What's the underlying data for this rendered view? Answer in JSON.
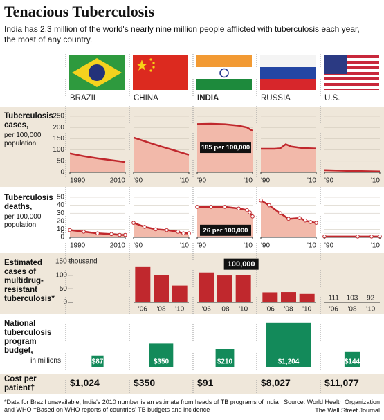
{
  "title": "Tenacious Tuberculosis",
  "subtitle": "India has 2.3 million of the world's nearly nine million people afflicted with tuberculosis each year, the most of any country.",
  "countries": [
    "BRAZIL",
    "CHINA",
    "INDIA",
    "RUSSIA",
    "U.S."
  ],
  "chart_data": [
    {
      "type": "line",
      "title": "Tuberculosis cases,",
      "subtitle": "per 100,000 population",
      "color": "#c0282d",
      "fill": "#f2b9aa",
      "xlim": [
        1990,
        2010
      ],
      "ylim": [
        0,
        250
      ],
      "yticks": [
        0,
        50,
        100,
        150,
        200,
        250
      ],
      "grid": true,
      "series": [
        {
          "x": [
            1990,
            1995,
            2000,
            2005,
            2010
          ],
          "values": [
            84,
            72,
            62,
            54,
            46
          ],
          "xticks": [
            1990,
            2010
          ]
        },
        {
          "x": [
            1990,
            1995,
            2000,
            2005,
            2010
          ],
          "values": [
            155,
            135,
            115,
            97,
            78
          ],
          "xticks": [
            {
              "value": 1990,
              "label": "'90"
            },
            {
              "value": 2010,
              "label": "'10"
            }
          ]
        },
        {
          "x": [
            1990,
            1995,
            2000,
            2005,
            2008,
            2010
          ],
          "values": [
            215,
            216,
            214,
            208,
            200,
            185
          ],
          "xticks": [
            {
              "value": 1990,
              "label": "'90"
            },
            {
              "value": 2010,
              "label": "'10"
            }
          ],
          "annotation": "185 per 100,000"
        },
        {
          "x": [
            1990,
            1995,
            1997,
            1999,
            2001,
            2005,
            2010
          ],
          "values": [
            105,
            105,
            107,
            125,
            115,
            108,
            106
          ],
          "xticks": [
            {
              "value": 1990,
              "label": "'90"
            },
            {
              "value": 2010,
              "label": "'10"
            }
          ]
        },
        {
          "x": [
            1990,
            2000,
            2010
          ],
          "values": [
            10,
            6,
            4
          ],
          "xticks": [
            {
              "value": 1990,
              "label": "'90"
            },
            {
              "value": 2010,
              "label": "'10"
            }
          ]
        }
      ]
    },
    {
      "type": "line",
      "title": "Tuberculosis deaths,",
      "subtitle": "per 100,000 population",
      "color": "#c0282d",
      "fill": "#f2b9aa",
      "markers": true,
      "xlim": [
        1990,
        2010
      ],
      "ylim": [
        0,
        50
      ],
      "yticks": [
        0,
        5,
        10,
        20,
        30,
        40,
        50
      ],
      "grid": true,
      "series": [
        {
          "x": [
            1990,
            1995,
            2000,
            2005,
            2008,
            2010
          ],
          "values": [
            9,
            7,
            5,
            4,
            3,
            3
          ],
          "xticks": [
            1990,
            2010
          ]
        },
        {
          "x": [
            1990,
            1994,
            1998,
            2002,
            2006,
            2008,
            2010
          ],
          "values": [
            18,
            13,
            10,
            9,
            7,
            5,
            5
          ],
          "xticks": [
            {
              "value": 1990,
              "label": "'90"
            },
            {
              "value": 2010,
              "label": "'10"
            }
          ]
        },
        {
          "x": [
            1990,
            1995,
            2000,
            2005,
            2008,
            2009,
            2010
          ],
          "values": [
            38,
            38,
            38,
            36,
            34,
            31,
            26
          ],
          "xticks": [
            {
              "value": 1990,
              "label": "'90"
            },
            {
              "value": 2010,
              "label": "'10"
            }
          ],
          "annotation": "26 per 100,000"
        },
        {
          "x": [
            1990,
            1993,
            1997,
            2000,
            2004,
            2006,
            2008,
            2010
          ],
          "values": [
            46,
            40,
            30,
            23,
            24,
            21,
            19,
            18
          ],
          "xticks": [
            {
              "value": 1990,
              "label": "'90"
            },
            {
              "value": 2010,
              "label": "'10"
            }
          ]
        },
        {
          "x": [
            1990,
            2002,
            2007,
            2010
          ],
          "values": [
            1,
            1,
            1,
            1
          ],
          "xticks": [
            {
              "value": 1990,
              "label": "'90"
            },
            {
              "value": 2010,
              "label": "'10"
            }
          ]
        }
      ]
    },
    {
      "type": "bar",
      "title": "Estimated cases of multidrug-resistant tuberculosis*",
      "color": "#c0282d",
      "categories": [
        "'06",
        "'08",
        "'10"
      ],
      "ylim": [
        0,
        150
      ],
      "yticks": [
        0,
        50,
        100,
        {
          "value": 150,
          "label": "150 thousand"
        }
      ],
      "series": [
        {
          "values": [
            130,
            100,
            62
          ]
        },
        {
          "values": [
            110,
            99,
            100
          ],
          "value_labels": [
            null,
            null,
            "100,000"
          ]
        },
        {
          "values": [
            37,
            38,
            31
          ]
        },
        {
          "values": [
            0.111,
            0.103,
            0.092
          ],
          "value_labels": [
            "111",
            "103",
            "92"
          ]
        }
      ]
    },
    {
      "type": "square",
      "title": "National tuberculosis program budget,",
      "subtitle": "in millions",
      "color": "#138a5a",
      "values": [
        87,
        350,
        210,
        1204,
        144
      ],
      "value_labels": [
        "$87",
        "$350",
        "$210",
        "$1,204",
        "$144"
      ]
    }
  ],
  "cost": {
    "label": "Cost per patient†",
    "values": [
      "$1,024",
      "$350",
      "$91",
      "$8,027",
      "$11,077"
    ]
  },
  "footnote": "*Data for Brazil unavailable; India's 2010 number is an estimate from heads of TB programs of India and WHO  †Based on WHO reports of countries' TB budgets and incidence",
  "source": "Source: World Health Organization",
  "credit": "The Wall Street Journal"
}
